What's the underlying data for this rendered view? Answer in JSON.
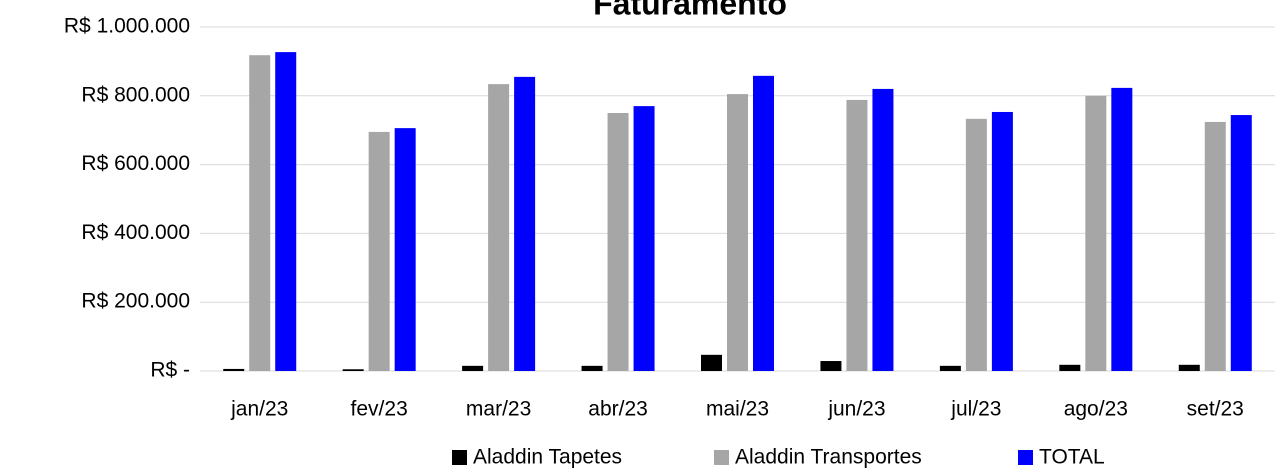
{
  "chart_data": {
    "type": "bar",
    "title": "Faturamento",
    "categories": [
      "jan/23",
      "fev/23",
      "mar/23",
      "abr/23",
      "mai/23",
      "jun/23",
      "jul/23",
      "ago/23",
      "set/23"
    ],
    "series": [
      {
        "name": "Aladdin Tapetes",
        "color": "#000000",
        "values": [
          6000,
          5000,
          15000,
          15000,
          47000,
          29000,
          15000,
          18000,
          18000
        ]
      },
      {
        "name": "Aladdin Transportes",
        "color": "#a6a6a6",
        "values": [
          918000,
          695000,
          834000,
          750000,
          805000,
          788000,
          733000,
          800000,
          724000
        ]
      },
      {
        "name": "TOTAL",
        "color": "#0000ff",
        "values": [
          927000,
          706000,
          855000,
          770000,
          858000,
          820000,
          753000,
          823000,
          744000
        ]
      }
    ],
    "ylim": [
      0,
      1000000
    ],
    "yticks": [
      {
        "value": 0,
        "label": "R$ -"
      },
      {
        "value": 200000,
        "label": "R$ 200.000"
      },
      {
        "value": 400000,
        "label": "R$ 400.000"
      },
      {
        "value": 600000,
        "label": "R$ 600.000"
      },
      {
        "value": 800000,
        "label": "R$ 800.000"
      },
      {
        "value": 1000000,
        "label": "R$ 1.000.000"
      }
    ],
    "grid": true,
    "legend": "bottom"
  }
}
